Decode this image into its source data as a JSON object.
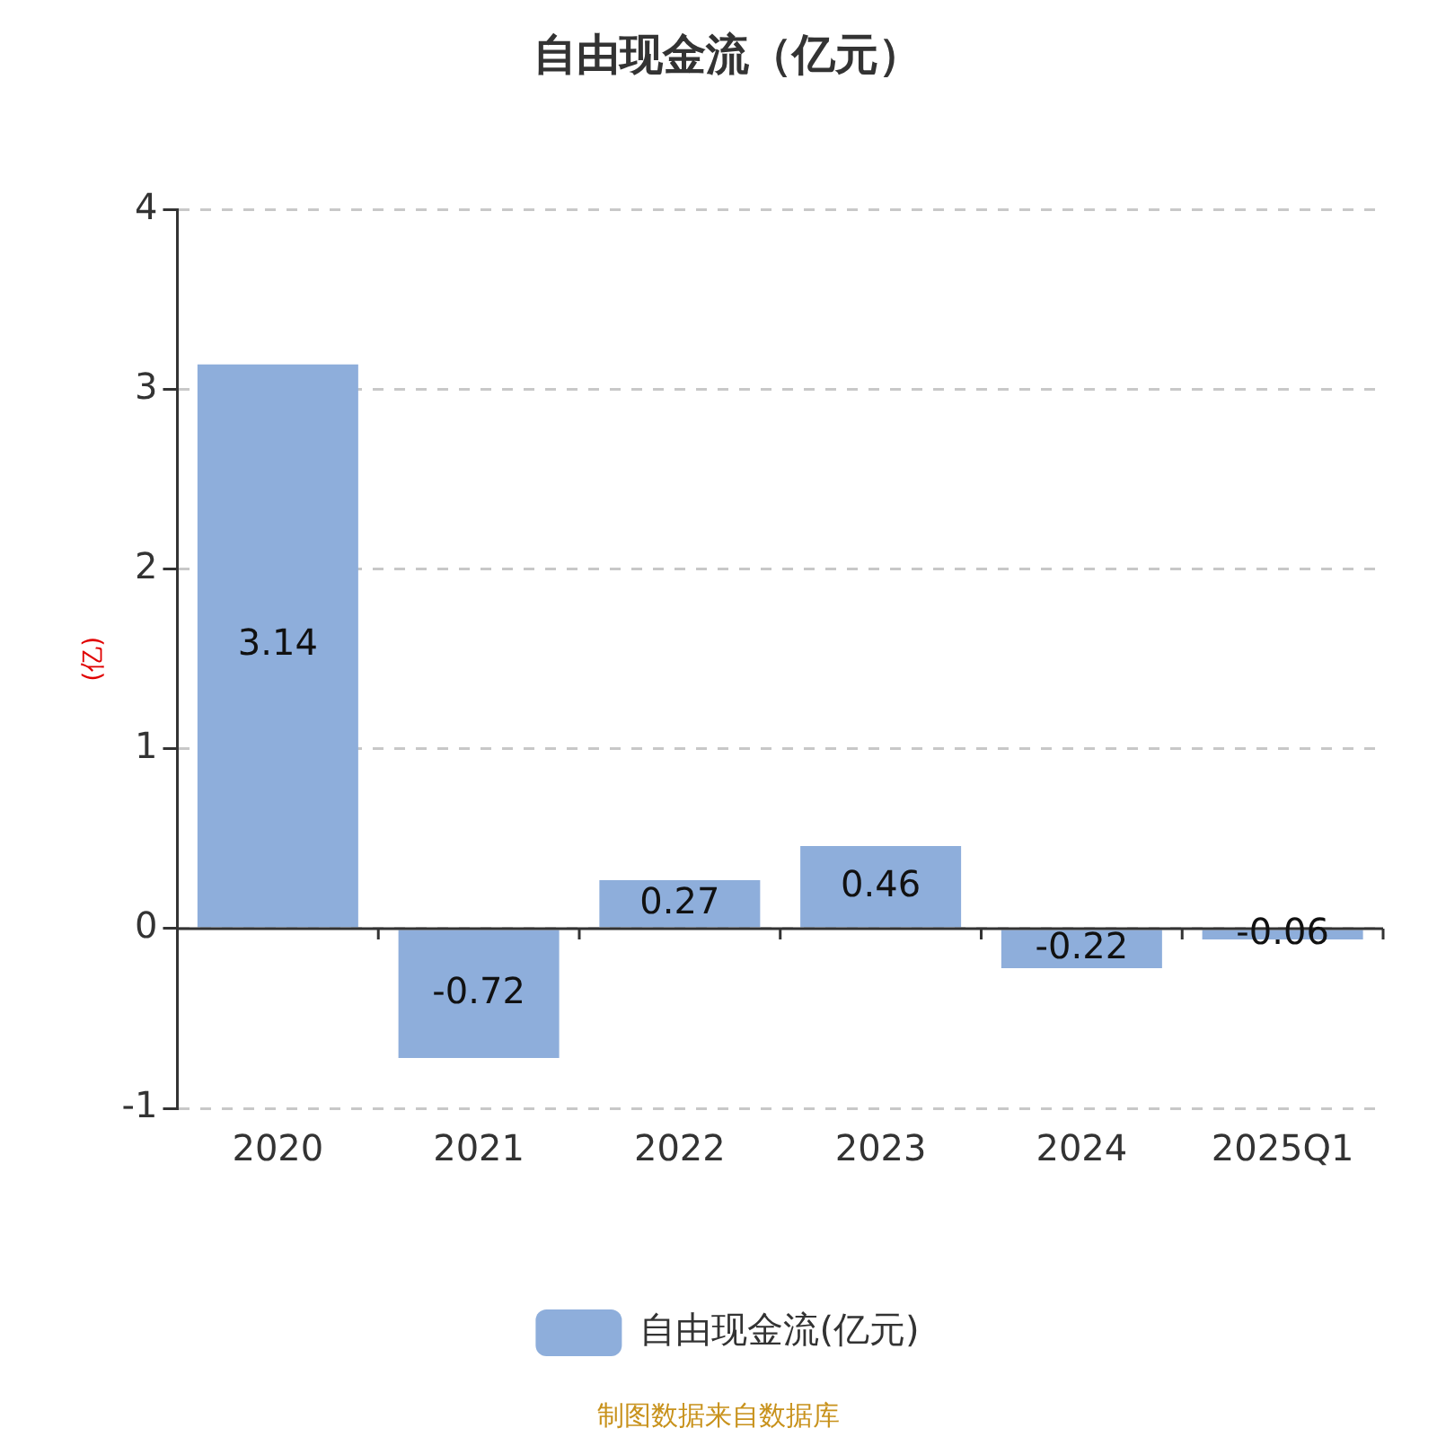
{
  "chart_data": {
    "type": "bar",
    "title": "自由现金流（亿元）",
    "ylabel": "(亿)",
    "categories": [
      "2020",
      "2021",
      "2022",
      "2023",
      "2024",
      "2025Q1"
    ],
    "series": [
      {
        "name": "自由现金流(亿元)",
        "color": "#8eaedb",
        "values": [
          3.14,
          -0.72,
          0.27,
          0.46,
          -0.22,
          -0.06
        ]
      }
    ],
    "ylim": [
      -1,
      4
    ],
    "yticks": [
      -1,
      0,
      1,
      2,
      3,
      4
    ],
    "grid": "y",
    "legend": "bottom",
    "data_labels": true,
    "annotations": [
      "制图数据来自数据库"
    ]
  }
}
